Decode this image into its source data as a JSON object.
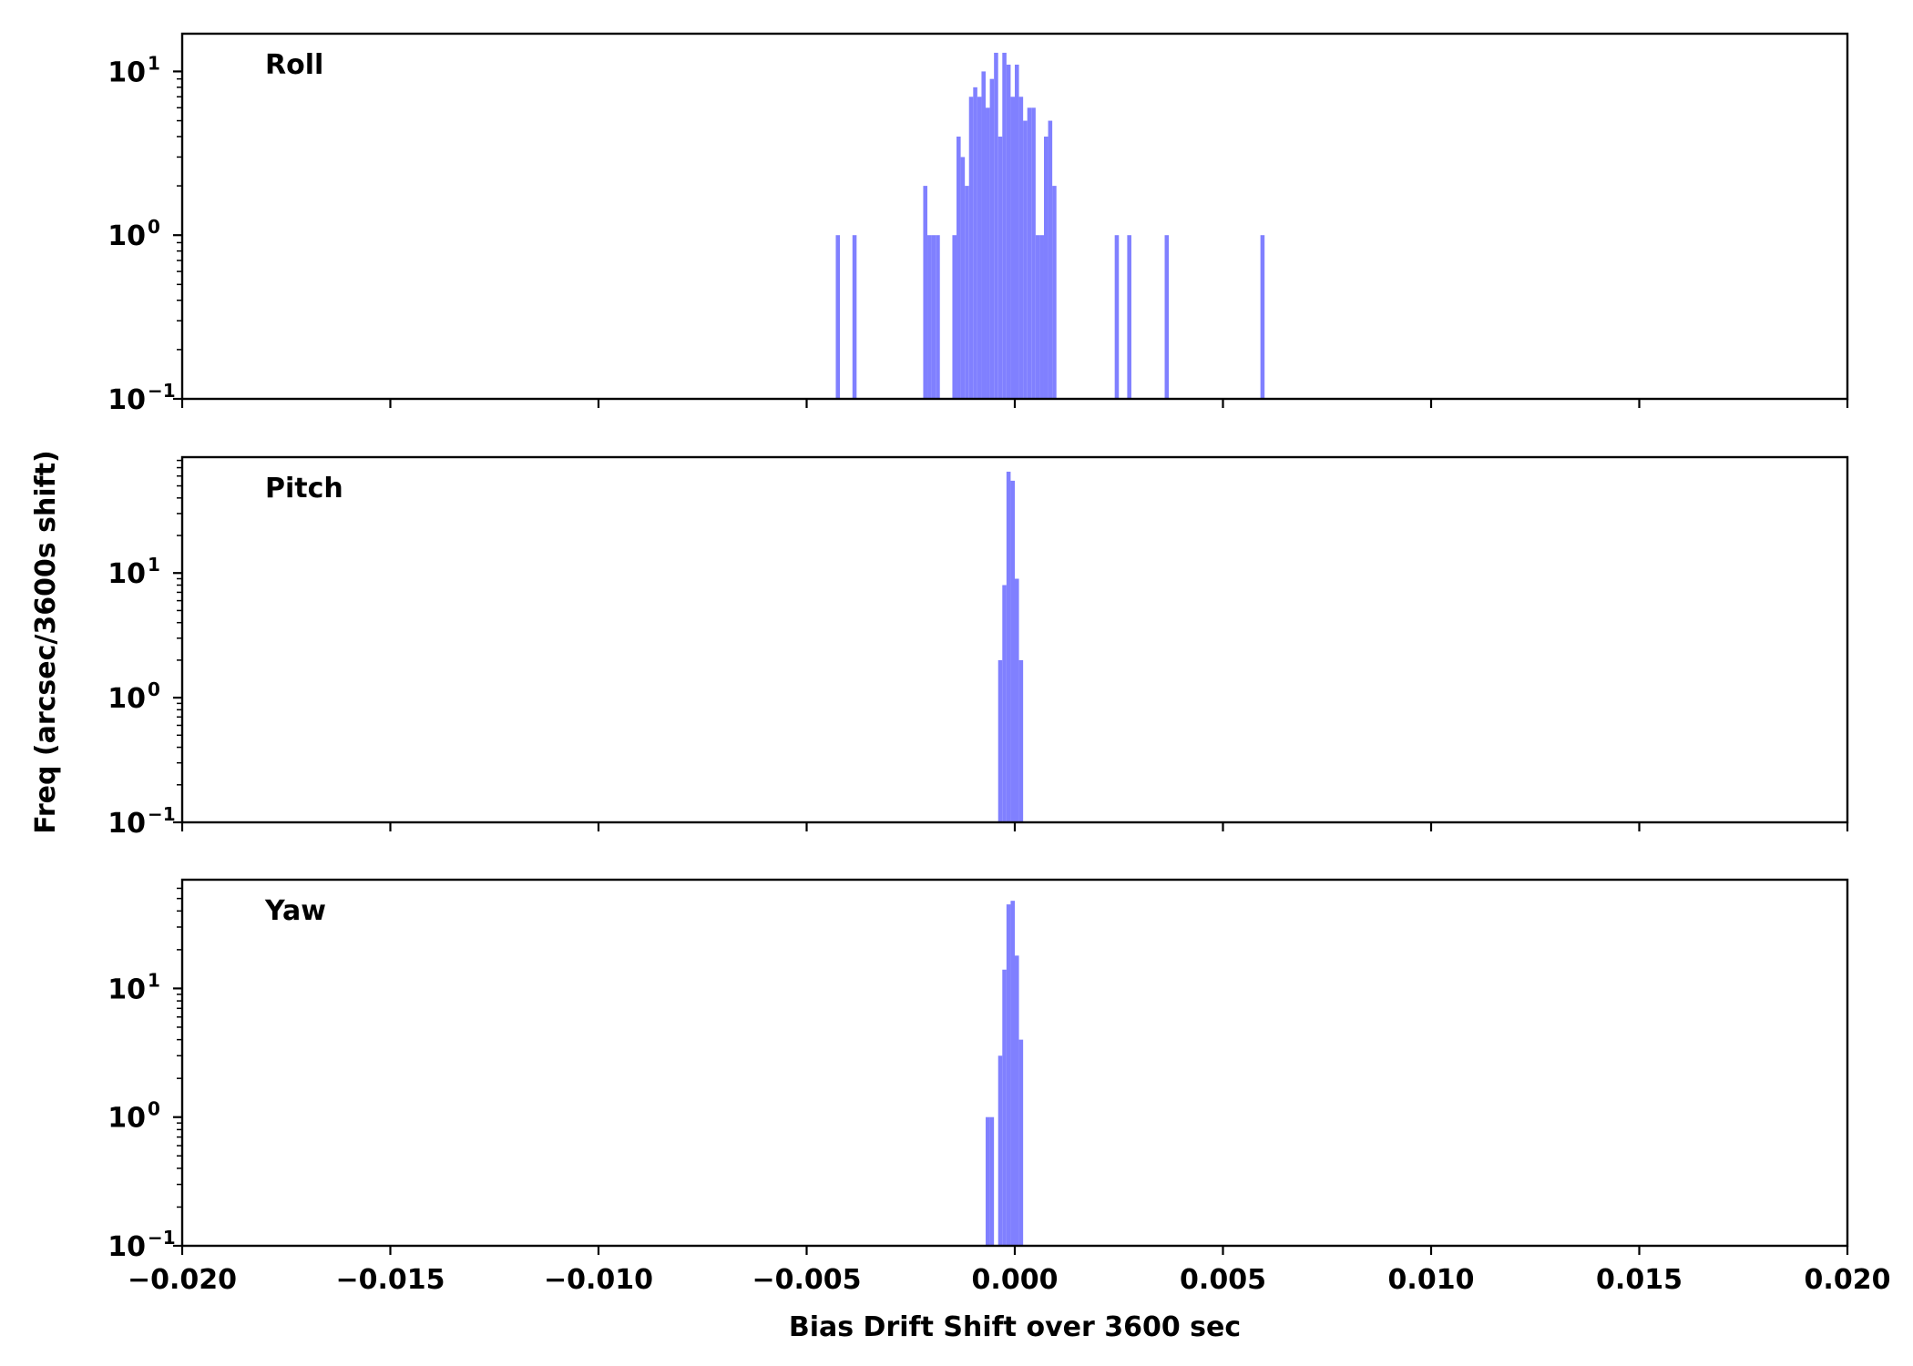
{
  "chart_data": {
    "type": "bar",
    "xlabel": "Bias Drift Shift over 3600 sec",
    "ylabel": "Freq (arcsec/3600s shift)",
    "xlim": [
      -0.02,
      0.02
    ],
    "xticks": [
      -0.02,
      -0.015,
      -0.01,
      -0.005,
      0.0,
      0.005,
      0.01,
      0.015,
      0.02
    ],
    "xtick_labels": [
      "−0.020",
      "−0.015",
      "−0.010",
      "−0.005",
      "0.000",
      "0.005",
      "0.010",
      "0.015",
      "0.020"
    ],
    "bin_width": 0.0001,
    "yscale": "log",
    "grid": false,
    "bar_color": "#8080ff",
    "panels": [
      {
        "label": "Roll",
        "ylim": [
          0.1,
          17
        ],
        "yticks": [
          0.1,
          1,
          10
        ],
        "ytick_labels": [
          {
            "base": "10",
            "exp": "−1"
          },
          {
            "base": "10",
            "exp": "0"
          },
          {
            "base": "10",
            "exp": "1"
          }
        ],
        "bins": [
          [
            -0.0043,
            1
          ],
          [
            -0.0039,
            1
          ],
          [
            -0.0022,
            2
          ],
          [
            -0.0021,
            1
          ],
          [
            -0.002,
            1
          ],
          [
            -0.0019,
            1
          ],
          [
            -0.0015,
            1
          ],
          [
            -0.0014,
            4
          ],
          [
            -0.0013,
            3
          ],
          [
            -0.0012,
            2
          ],
          [
            -0.0011,
            7
          ],
          [
            -0.001,
            8
          ],
          [
            -0.0009,
            7
          ],
          [
            -0.0008,
            10
          ],
          [
            -0.0007,
            6
          ],
          [
            -0.0006,
            9
          ],
          [
            -0.0005,
            13
          ],
          [
            -0.0004,
            4
          ],
          [
            -0.0003,
            13
          ],
          [
            -0.0002,
            11
          ],
          [
            -0.0001,
            7
          ],
          [
            0.0,
            11
          ],
          [
            0.0001,
            7
          ],
          [
            0.0002,
            5
          ],
          [
            0.0003,
            6
          ],
          [
            0.0004,
            6
          ],
          [
            0.0005,
            1
          ],
          [
            0.0006,
            1
          ],
          [
            0.0007,
            4
          ],
          [
            0.0008,
            5
          ],
          [
            0.0009,
            2
          ],
          [
            0.0024,
            1
          ],
          [
            0.0027,
            1
          ],
          [
            0.0036,
            1
          ],
          [
            0.0059,
            1
          ]
        ]
      },
      {
        "label": "Pitch",
        "ylim": [
          0.1,
          85
        ],
        "yticks": [
          0.1,
          1,
          10
        ],
        "ytick_labels": [
          {
            "base": "10",
            "exp": "−1"
          },
          {
            "base": "10",
            "exp": "0"
          },
          {
            "base": "10",
            "exp": "1"
          }
        ],
        "bins": [
          [
            -0.0004,
            2
          ],
          [
            -0.0003,
            8
          ],
          [
            -0.0002,
            65
          ],
          [
            -0.0001,
            55
          ],
          [
            0.0,
            9
          ],
          [
            0.0001,
            2
          ]
        ]
      },
      {
        "label": "Yaw",
        "ylim": [
          0.1,
          70
        ],
        "yticks": [
          0.1,
          1,
          10
        ],
        "ytick_labels": [
          {
            "base": "10",
            "exp": "−1"
          },
          {
            "base": "10",
            "exp": "0"
          },
          {
            "base": "10",
            "exp": "1"
          }
        ],
        "bins": [
          [
            -0.0007,
            1
          ],
          [
            -0.0006,
            1
          ],
          [
            -0.0004,
            3
          ],
          [
            -0.0003,
            14
          ],
          [
            -0.0002,
            45
          ],
          [
            -0.0001,
            48
          ],
          [
            0.0,
            18
          ],
          [
            0.0001,
            4
          ]
        ]
      }
    ]
  }
}
